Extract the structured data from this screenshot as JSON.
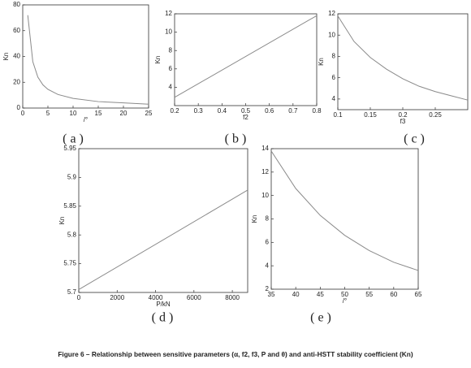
{
  "chart_data": [
    {
      "type": "line",
      "panel_label": "( a )",
      "x_label": "/°",
      "y_label": "Kn",
      "x": [
        1,
        2,
        3,
        4,
        5,
        7,
        10,
        15,
        20,
        25
      ],
      "values": [
        72,
        36,
        24,
        18,
        14.5,
        10.5,
        7.5,
        5,
        4,
        3
      ],
      "color": "#8a8a8a",
      "xlim": [
        0,
        25
      ],
      "ylim": [
        0,
        80
      ],
      "xticks": [
        0,
        5,
        10,
        15,
        20,
        25
      ],
      "yticks": [
        0,
        20,
        40,
        60,
        80
      ]
    },
    {
      "type": "line",
      "panel_label": "( b )",
      "x_label": "f2",
      "y_label": "Kn",
      "x": [
        0.2,
        0.8
      ],
      "values": [
        2.9,
        11.8
      ],
      "color": "#8a8a8a",
      "xlim": [
        0.2,
        0.8
      ],
      "ylim": [
        2,
        12
      ],
      "xticks": [
        0.2,
        0.3,
        0.4,
        0.5,
        0.6,
        0.7,
        0.8
      ],
      "yticks": [
        4,
        6,
        8,
        10,
        12
      ]
    },
    {
      "type": "line",
      "panel_label": "( c )",
      "x_label": "f3",
      "y_label": "Kn",
      "x": [
        0.1,
        0.125,
        0.15,
        0.175,
        0.2,
        0.225,
        0.25,
        0.275,
        0.3
      ],
      "values": [
        11.8,
        9.4,
        7.9,
        6.8,
        5.9,
        5.2,
        4.7,
        4.3,
        3.9
      ],
      "color": "#8a8a8a",
      "xlim": [
        0.1,
        0.3
      ],
      "ylim": [
        3,
        12
      ],
      "xticks": [
        0.1,
        0.15,
        0.2,
        0.25
      ],
      "yticks": [
        4,
        6,
        8,
        10,
        12
      ]
    },
    {
      "type": "line",
      "panel_label": "( d )",
      "x_label": "P/kN",
      "y_label": "Kn",
      "x": [
        0,
        8800
      ],
      "values": [
        5.705,
        5.878
      ],
      "color": "#8a8a8a",
      "xlim": [
        0,
        8800
      ],
      "ylim": [
        5.7,
        5.95
      ],
      "xticks": [
        0,
        2000,
        4000,
        6000,
        8000
      ],
      "yticks": [
        5.7,
        5.75,
        5.8,
        5.85,
        5.9,
        5.95
      ]
    },
    {
      "type": "line",
      "panel_label": "( e )",
      "x_label": "/°",
      "y_label": "Kn",
      "x": [
        35,
        40,
        45,
        50,
        55,
        60,
        65
      ],
      "values": [
        13.8,
        10.6,
        8.3,
        6.6,
        5.3,
        4.3,
        3.6
      ],
      "color": "#8a8a8a",
      "xlim": [
        35,
        65
      ],
      "ylim": [
        2,
        14
      ],
      "xticks": [
        35,
        40,
        45,
        50,
        55,
        60,
        65
      ],
      "yticks": [
        2,
        4,
        6,
        8,
        10,
        12,
        14
      ]
    }
  ],
  "caption": "Figure 6 – Relationship between sensitive parameters (α, f2, f3, P and θ) and anti-HSTT stability coefficient (Kn)"
}
